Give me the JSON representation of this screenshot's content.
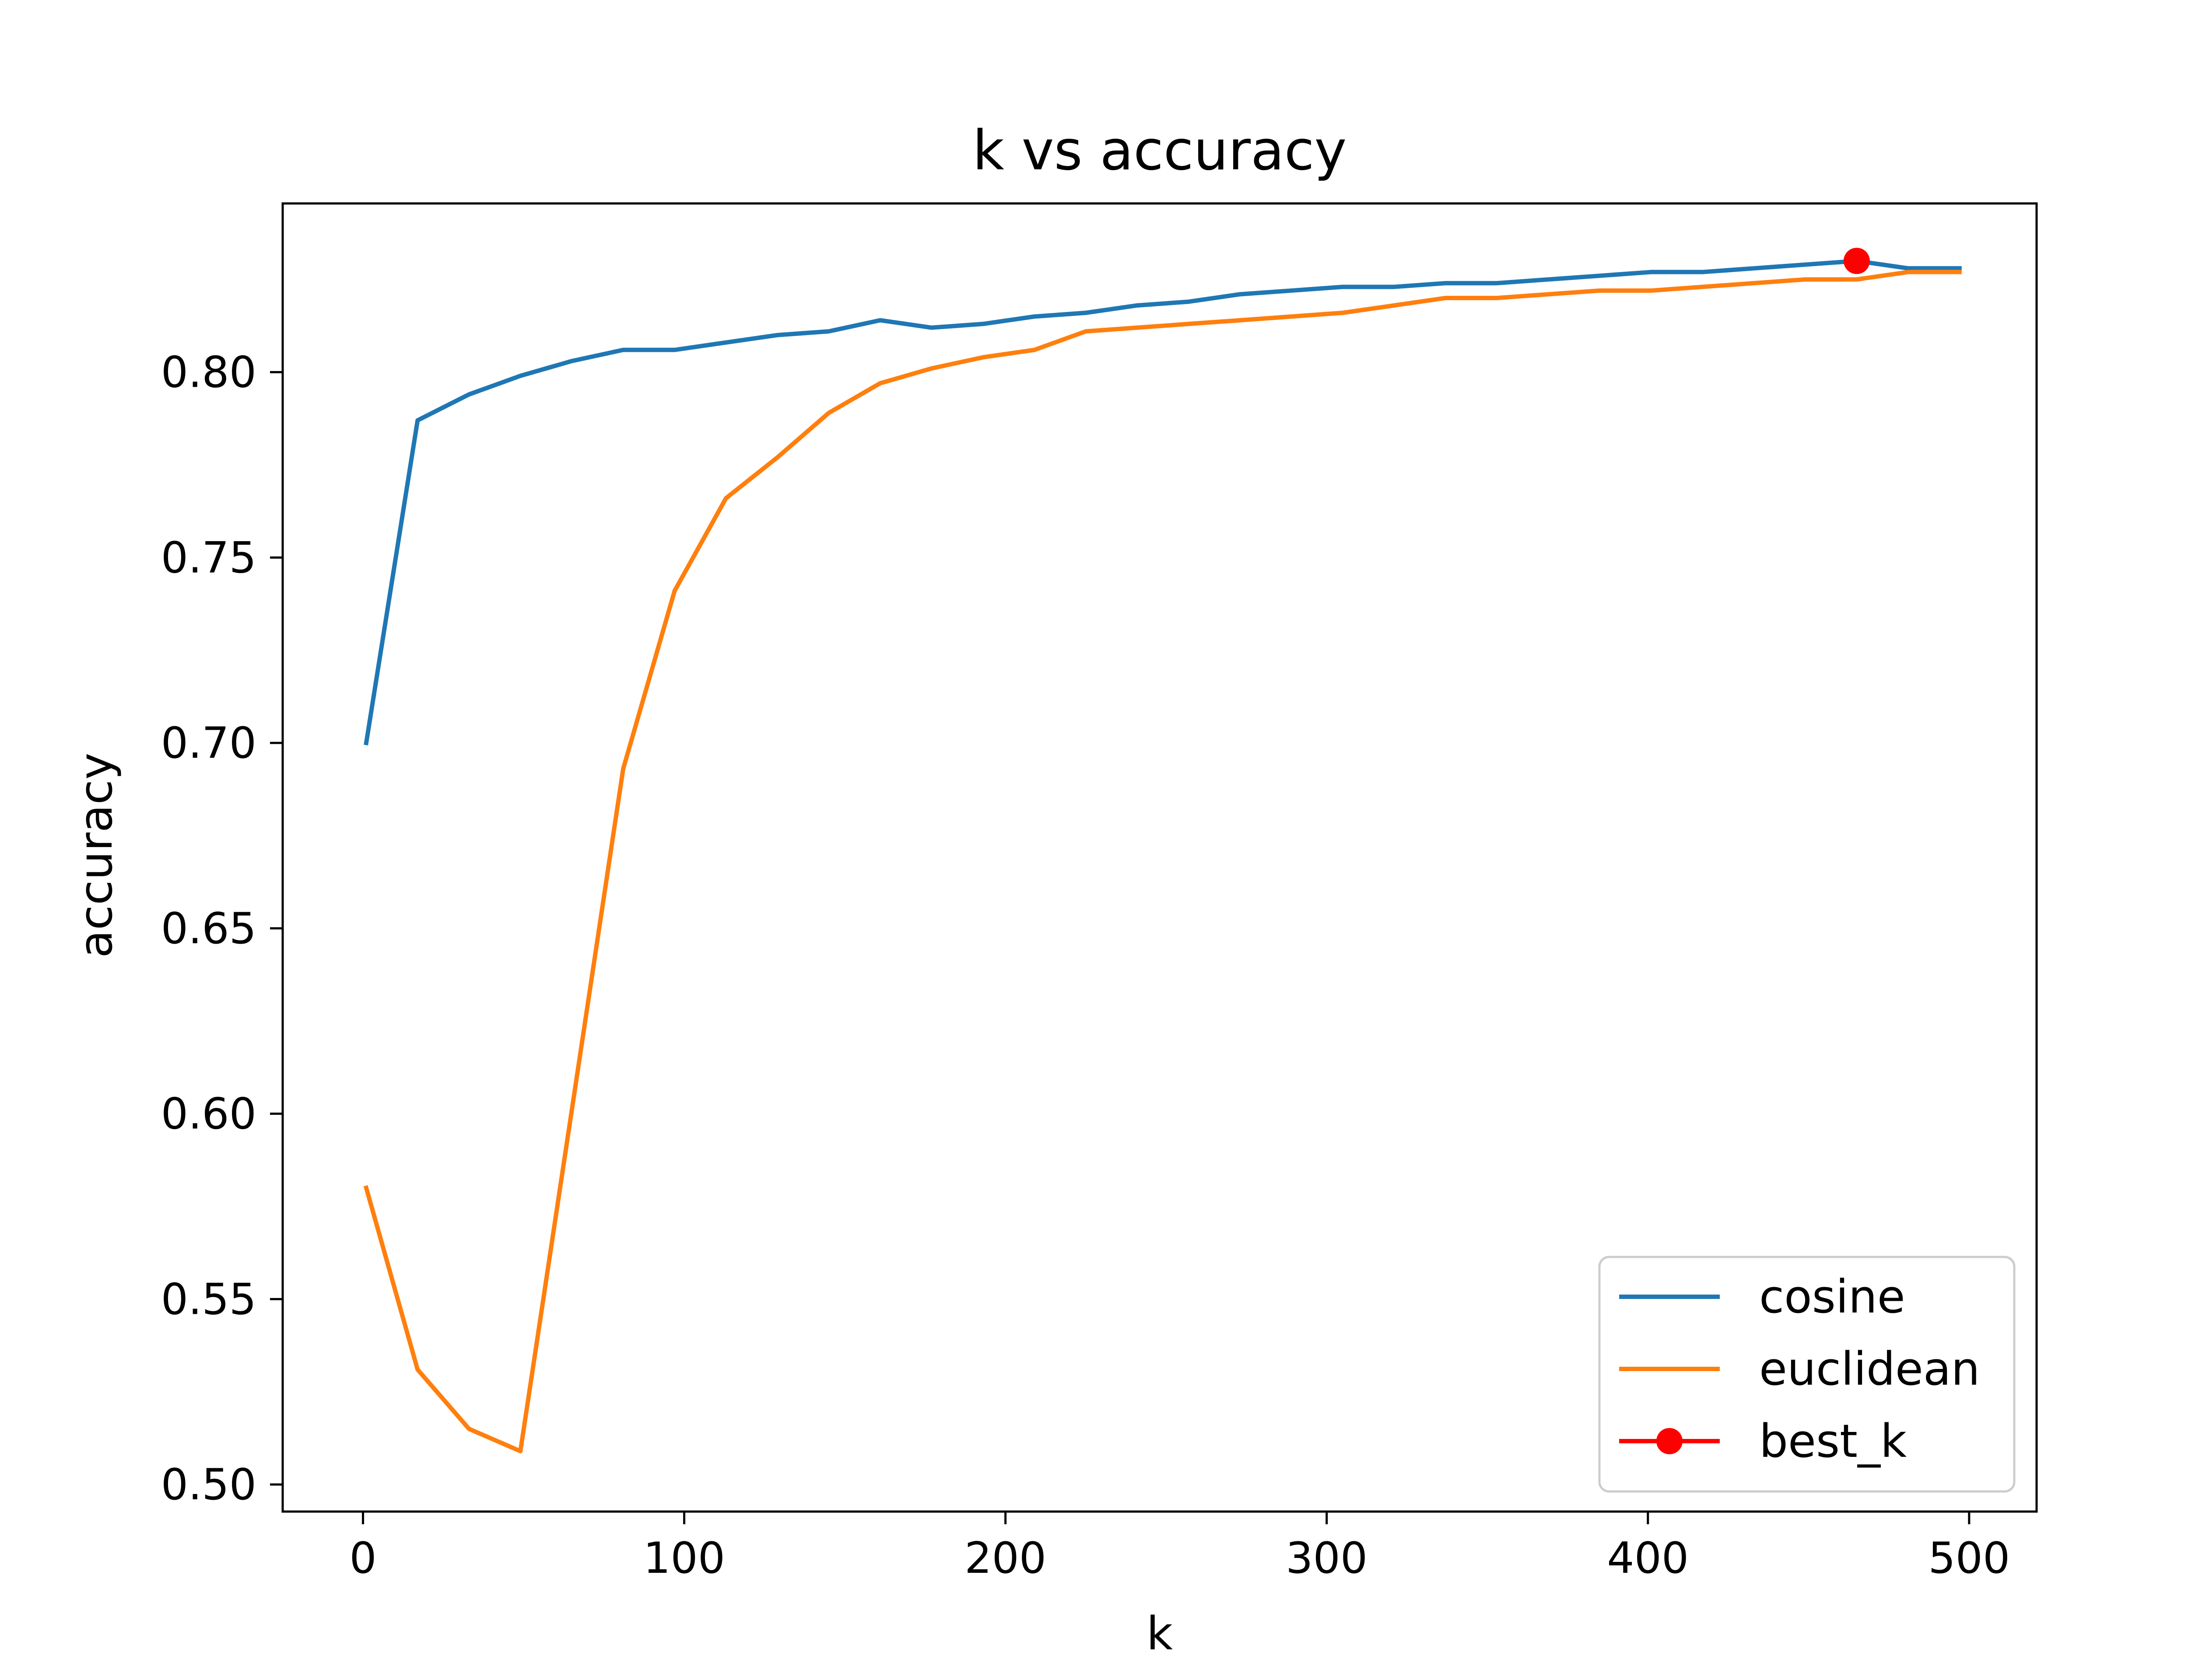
{
  "chart_data": {
    "type": "line",
    "title": "k vs accuracy",
    "xlabel": "k",
    "ylabel": "accuracy",
    "xlim": [
      -25,
      521
    ],
    "ylim": [
      0.4927,
      0.8455
    ],
    "x_ticks": [
      {
        "value": 0,
        "label": "0"
      },
      {
        "value": 100,
        "label": "100"
      },
      {
        "value": 200,
        "label": "200"
      },
      {
        "value": 300,
        "label": "300"
      },
      {
        "value": 400,
        "label": "400"
      },
      {
        "value": 500,
        "label": "500"
      }
    ],
    "y_ticks": [
      {
        "value": 0.5,
        "label": "0.50"
      },
      {
        "value": 0.55,
        "label": "0.55"
      },
      {
        "value": 0.6,
        "label": "0.60"
      },
      {
        "value": 0.65,
        "label": "0.65"
      },
      {
        "value": 0.7,
        "label": "0.70"
      },
      {
        "value": 0.75,
        "label": "0.75"
      },
      {
        "value": 0.8,
        "label": "0.80"
      }
    ],
    "x": [
      1,
      17,
      33,
      49,
      65,
      81,
      97,
      113,
      129,
      145,
      161,
      177,
      193,
      209,
      225,
      241,
      257,
      273,
      289,
      305,
      321,
      337,
      353,
      369,
      385,
      401,
      417,
      433,
      449,
      465,
      481,
      497
    ],
    "series": [
      {
        "name": "cosine",
        "color": "#1f77b4",
        "values": [
          0.7,
          0.787,
          0.794,
          0.799,
          0.803,
          0.806,
          0.806,
          0.808,
          0.81,
          0.811,
          0.814,
          0.812,
          0.813,
          0.815,
          0.816,
          0.818,
          0.819,
          0.821,
          0.822,
          0.823,
          0.823,
          0.824,
          0.824,
          0.825,
          0.826,
          0.827,
          0.827,
          0.828,
          0.829,
          0.83,
          0.828,
          0.828
        ]
      },
      {
        "name": "euclidean",
        "color": "#ff7f0e",
        "values": [
          0.58,
          0.531,
          0.515,
          0.509,
          0.601,
          0.693,
          0.741,
          0.766,
          0.777,
          0.789,
          0.797,
          0.801,
          0.804,
          0.806,
          0.811,
          0.812,
          0.813,
          0.814,
          0.815,
          0.816,
          0.818,
          0.82,
          0.82,
          0.821,
          0.822,
          0.822,
          0.823,
          0.824,
          0.825,
          0.825,
          0.827,
          0.827
        ]
      }
    ],
    "best_point": {
      "name": "best_k",
      "x": 465,
      "y": 0.83,
      "color": "#ff0000"
    },
    "legend": {
      "position": "lower-right",
      "entries": [
        "cosine",
        "euclidean",
        "best_k"
      ]
    },
    "grid": false
  }
}
